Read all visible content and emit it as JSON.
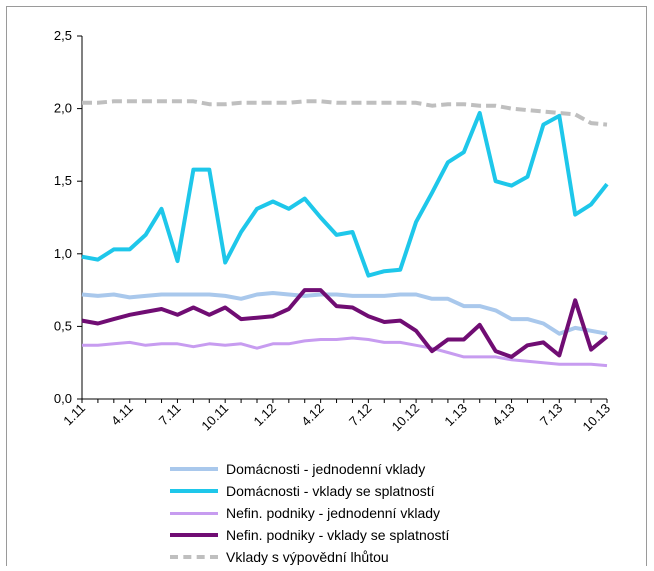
{
  "chart_data": {
    "type": "line",
    "title": "",
    "xlabel": "",
    "ylabel": "",
    "ylim": [
      0,
      2.5
    ],
    "yticks": [
      "0,0",
      "0,5",
      "1,0",
      "1,5",
      "2,0",
      "2,5"
    ],
    "x": [
      "1.11",
      "2.11",
      "3.11",
      "4.11",
      "5.11",
      "6.11",
      "7.11",
      "8.11",
      "9.11",
      "10.11",
      "11.11",
      "12.11",
      "1.12",
      "2.12",
      "3.12",
      "4.12",
      "5.12",
      "6.12",
      "7.12",
      "8.12",
      "9.12",
      "10.12",
      "11.12",
      "12.12",
      "1.13",
      "2.13",
      "3.13",
      "4.13",
      "5.13",
      "6.13",
      "7.13",
      "8.13",
      "9.13",
      "10.13"
    ],
    "x_tick_labels": [
      "1.11",
      "4.11",
      "7.11",
      "10.11",
      "1.12",
      "4.12",
      "7.12",
      "10.12",
      "1.13",
      "4.13",
      "7.13",
      "10.13"
    ],
    "legend_position": "bottom",
    "series": [
      {
        "name": "Domácnosti - jednodenní vklady",
        "color": "#a9c8ec",
        "dash": "solid",
        "width": 4,
        "values": [
          0.72,
          0.71,
          0.72,
          0.7,
          0.71,
          0.72,
          0.72,
          0.72,
          0.72,
          0.71,
          0.69,
          0.72,
          0.73,
          0.72,
          0.71,
          0.72,
          0.72,
          0.71,
          0.71,
          0.71,
          0.72,
          0.72,
          0.69,
          0.69,
          0.64,
          0.64,
          0.61,
          0.55,
          0.55,
          0.52,
          0.45,
          0.49,
          0.47,
          0.45
        ]
      },
      {
        "name": "Domácnosti - vklady se splatností",
        "color": "#1ec7ea",
        "dash": "solid",
        "width": 4,
        "values": [
          0.98,
          0.96,
          1.03,
          1.03,
          1.13,
          1.31,
          0.95,
          1.58,
          1.58,
          0.94,
          1.15,
          1.31,
          1.36,
          1.31,
          1.38,
          1.25,
          1.13,
          1.15,
          0.85,
          0.88,
          0.89,
          1.22,
          1.42,
          1.63,
          1.7,
          1.97,
          1.5,
          1.47,
          1.53,
          1.89,
          1.95,
          1.27,
          1.34,
          1.48
        ]
      },
      {
        "name": "Nefin. podniky - jednodenní vklady",
        "color": "#c79cf0",
        "dash": "solid",
        "width": 3,
        "values": [
          0.37,
          0.37,
          0.38,
          0.39,
          0.37,
          0.38,
          0.38,
          0.36,
          0.38,
          0.37,
          0.38,
          0.35,
          0.38,
          0.38,
          0.4,
          0.41,
          0.41,
          0.42,
          0.41,
          0.39,
          0.39,
          0.37,
          0.35,
          0.32,
          0.29,
          0.29,
          0.29,
          0.27,
          0.26,
          0.25,
          0.24,
          0.24,
          0.24,
          0.23
        ]
      },
      {
        "name": "Nefin. podniky - vklady se splatností",
        "color": "#700d73",
        "dash": "solid",
        "width": 4,
        "values": [
          0.54,
          0.52,
          0.55,
          0.58,
          0.6,
          0.62,
          0.58,
          0.63,
          0.58,
          0.63,
          0.55,
          0.56,
          0.57,
          0.62,
          0.75,
          0.75,
          0.64,
          0.63,
          0.57,
          0.53,
          0.54,
          0.47,
          0.33,
          0.41,
          0.41,
          0.51,
          0.33,
          0.29,
          0.37,
          0.39,
          0.3,
          0.68,
          0.34,
          0.43
        ]
      },
      {
        "name": "Vklady s výpovědní lhůtou",
        "color": "#bfbfbf",
        "dash": "dashed",
        "width": 4,
        "values": [
          2.04,
          2.04,
          2.05,
          2.05,
          2.05,
          2.05,
          2.05,
          2.05,
          2.03,
          2.03,
          2.04,
          2.04,
          2.04,
          2.04,
          2.05,
          2.05,
          2.04,
          2.04,
          2.04,
          2.04,
          2.04,
          2.04,
          2.02,
          2.03,
          2.03,
          2.02,
          2.02,
          2.0,
          1.99,
          1.98,
          1.97,
          1.96,
          1.9,
          1.89
        ]
      }
    ]
  }
}
